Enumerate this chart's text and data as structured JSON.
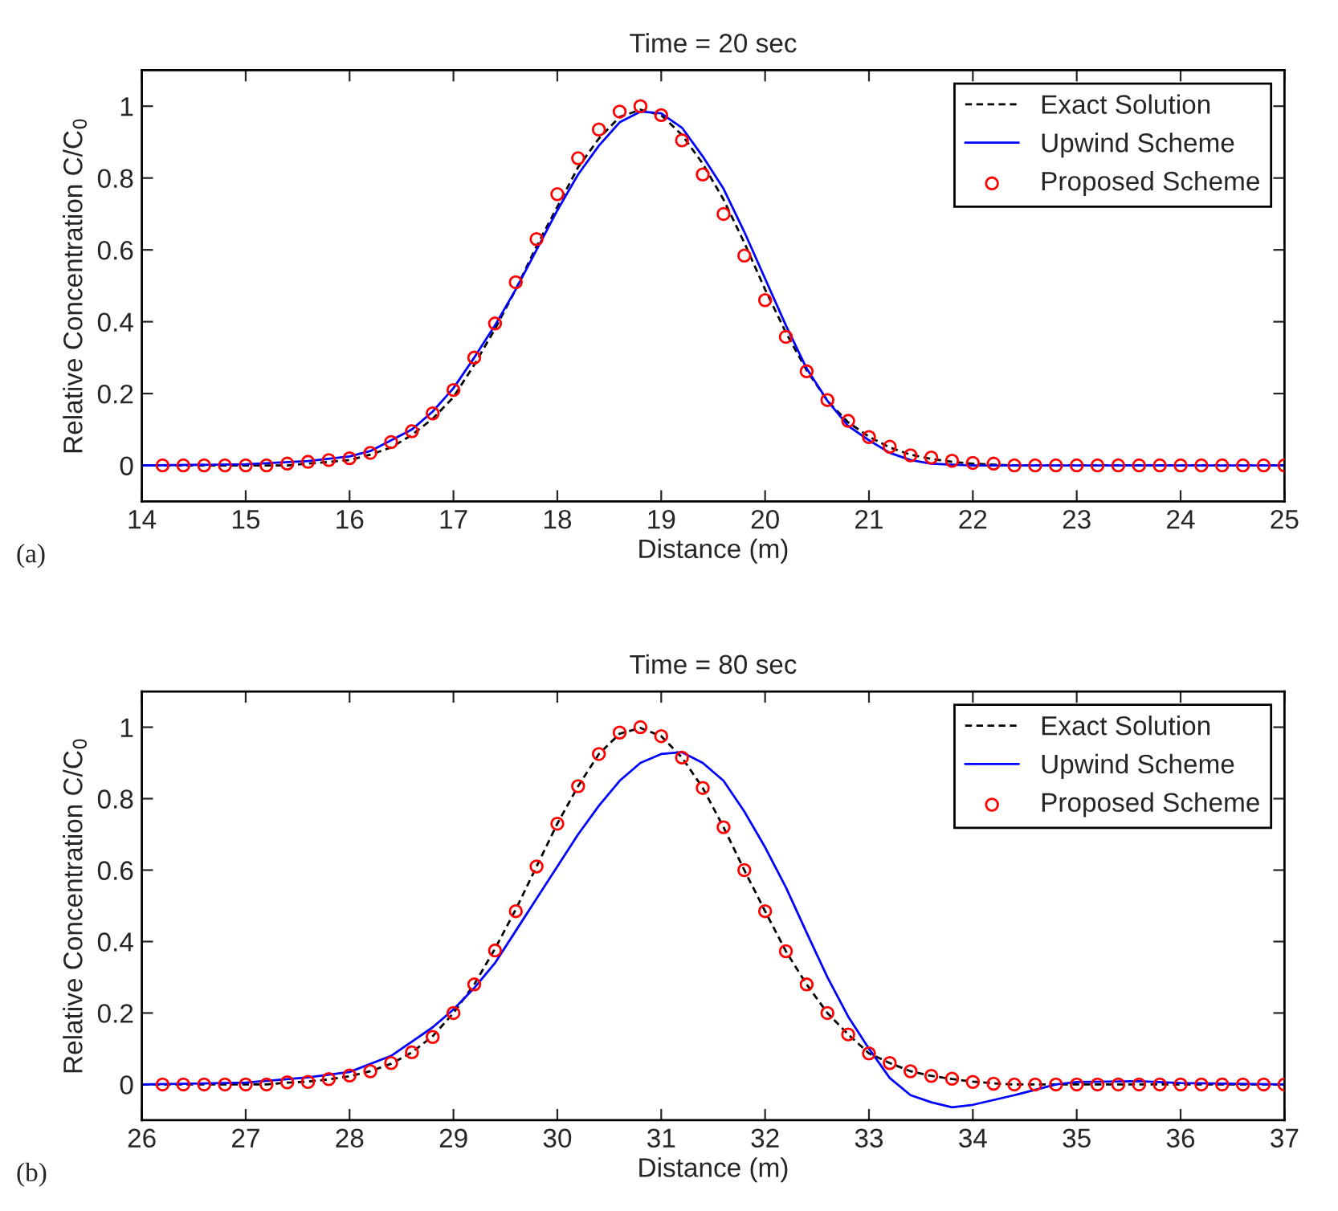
{
  "chart_data": [
    {
      "type": "line",
      "title": "Time = 20 sec",
      "xlabel": "Distance (m)",
      "ylabel": "Relative Concentration C/C$_{0}$",
      "annotations": [
        "(a)"
      ],
      "xlim": [
        14,
        25
      ],
      "xticks": [
        14,
        15,
        16,
        17,
        18,
        19,
        20,
        21,
        22,
        23,
        24,
        25
      ],
      "ylim": [
        -0.1,
        1.1
      ],
      "yticks": [
        0,
        0.2,
        0.4,
        0.6,
        0.8,
        1
      ],
      "legend": "top right",
      "grid": false,
      "series": [
        {
          "name": "Exact Solution",
          "color": "#000000",
          "line_style": "dashed",
          "marker": "none",
          "x": [
            14.0,
            14.4,
            14.8,
            15.2,
            15.4,
            15.6,
            15.8,
            16.0,
            16.2,
            16.4,
            16.6,
            16.8,
            17.0,
            17.2,
            17.4,
            17.6,
            17.8,
            18.0,
            18.2,
            18.4,
            18.6,
            18.8,
            19.0,
            19.2,
            19.4,
            19.6,
            19.8,
            20.0,
            20.2,
            20.4,
            20.6,
            20.8,
            21.0,
            21.2,
            21.4,
            21.6,
            21.8,
            22.0,
            22.2,
            22.4,
            25.0
          ],
          "values": [
            0,
            0,
            0,
            0,
            0,
            0.005,
            0.01,
            0.015,
            0.03,
            0.05,
            0.085,
            0.13,
            0.19,
            0.28,
            0.38,
            0.49,
            0.61,
            0.72,
            0.83,
            0.91,
            0.97,
            0.99,
            0.975,
            0.92,
            0.84,
            0.74,
            0.62,
            0.49,
            0.37,
            0.265,
            0.18,
            0.12,
            0.08,
            0.05,
            0.03,
            0.018,
            0.01,
            0.005,
            0.002,
            0,
            0
          ]
        },
        {
          "name": "Upwind Scheme",
          "color": "#0000ff",
          "line_style": "solid",
          "marker": "none",
          "x": [
            14.0,
            15.0,
            15.6,
            16.0,
            16.2,
            16.4,
            16.6,
            16.8,
            17.0,
            17.2,
            17.4,
            17.6,
            17.8,
            18.0,
            18.2,
            18.4,
            18.6,
            18.8,
            19.0,
            19.2,
            19.4,
            19.6,
            19.8,
            20.0,
            20.2,
            20.4,
            20.6,
            20.8,
            21.0,
            21.2,
            21.4,
            21.6,
            21.8,
            22.0,
            25.0
          ],
          "values": [
            0,
            0.003,
            0.012,
            0.025,
            0.04,
            0.07,
            0.1,
            0.15,
            0.215,
            0.3,
            0.39,
            0.49,
            0.6,
            0.71,
            0.81,
            0.89,
            0.955,
            0.985,
            0.98,
            0.94,
            0.86,
            0.77,
            0.65,
            0.52,
            0.39,
            0.27,
            0.18,
            0.11,
            0.07,
            0.035,
            0.015,
            0.005,
            0.002,
            0,
            0
          ]
        },
        {
          "name": "Proposed Scheme",
          "color": "#ff0000",
          "type": "scatter",
          "marker": "circle",
          "x": [
            14.2,
            14.4,
            14.6,
            14.8,
            15.0,
            15.2,
            15.4,
            15.6,
            15.8,
            16.0,
            16.2,
            16.4,
            16.6,
            16.8,
            17.0,
            17.2,
            17.4,
            17.6,
            17.8,
            18.0,
            18.2,
            18.4,
            18.6,
            18.8,
            19.0,
            19.2,
            19.4,
            19.6,
            19.8,
            20.0,
            20.2,
            20.4,
            20.6,
            20.8,
            21.0,
            21.2,
            21.4,
            21.6,
            21.8,
            22.0,
            22.2,
            22.4,
            22.6,
            22.8,
            23.0,
            23.2,
            23.4,
            23.6,
            23.8,
            24.0,
            24.2,
            24.4,
            24.6,
            24.8,
            25.0
          ],
          "values": [
            0,
            0,
            0,
            0,
            0,
            0,
            0.005,
            0.01,
            0.015,
            0.02,
            0.035,
            0.065,
            0.095,
            0.145,
            0.21,
            0.3,
            0.395,
            0.51,
            0.63,
            0.755,
            0.855,
            0.935,
            0.985,
            1.0,
            0.975,
            0.905,
            0.81,
            0.7,
            0.584,
            0.46,
            0.358,
            0.262,
            0.182,
            0.124,
            0.079,
            0.052,
            0.028,
            0.022,
            0.013,
            0.007,
            0.005,
            0,
            0,
            0,
            0,
            0,
            0,
            0,
            0,
            0,
            0,
            0,
            0,
            0,
            0
          ]
        }
      ]
    },
    {
      "type": "line",
      "title": "Time = 80 sec",
      "xlabel": "Distance (m)",
      "ylabel": "Relative Concentration C/C$_{0}$",
      "annotations": [
        "(b)"
      ],
      "xlim": [
        26,
        37
      ],
      "xticks": [
        26,
        27,
        28,
        29,
        30,
        31,
        32,
        33,
        34,
        35,
        36,
        37
      ],
      "ylim": [
        -0.1,
        1.1
      ],
      "yticks": [
        0,
        0.2,
        0.4,
        0.6,
        0.8,
        1
      ],
      "legend": "top right",
      "grid": false,
      "series": [
        {
          "name": "Exact Solution",
          "color": "#000000",
          "line_style": "dashed",
          "marker": "none",
          "x": [
            26.0,
            27.2,
            27.4,
            27.6,
            27.8,
            28.0,
            28.2,
            28.4,
            28.6,
            28.8,
            29.0,
            29.2,
            29.4,
            29.6,
            29.8,
            30.0,
            30.2,
            30.4,
            30.6,
            30.8,
            31.0,
            31.2,
            31.4,
            31.6,
            31.8,
            32.0,
            32.2,
            32.4,
            32.6,
            32.8,
            33.0,
            33.2,
            33.4,
            33.6,
            33.8,
            34.0,
            34.2,
            34.4,
            37.0
          ],
          "values": [
            0,
            0,
            0.005,
            0.008,
            0.014,
            0.023,
            0.037,
            0.058,
            0.09,
            0.135,
            0.2,
            0.28,
            0.38,
            0.49,
            0.61,
            0.73,
            0.835,
            0.925,
            0.982,
            0.998,
            0.975,
            0.915,
            0.83,
            0.72,
            0.6,
            0.485,
            0.373,
            0.28,
            0.2,
            0.14,
            0.087,
            0.06,
            0.037,
            0.024,
            0.015,
            0.008,
            0.003,
            0,
            0
          ]
        },
        {
          "name": "Upwind Scheme",
          "color": "#0000ff",
          "line_style": "solid",
          "marker": "none",
          "x": [
            26.0,
            27.0,
            27.6,
            28.0,
            28.4,
            28.6,
            28.8,
            29.0,
            29.2,
            29.4,
            29.6,
            29.8,
            30.0,
            30.2,
            30.4,
            30.6,
            30.8,
            31.0,
            31.2,
            31.4,
            31.6,
            31.8,
            32.0,
            32.2,
            32.4,
            32.6,
            32.8,
            33.0,
            33.2,
            33.4,
            33.6,
            33.8,
            34.0,
            34.4,
            34.8,
            35.0,
            35.6,
            36.0,
            37.0
          ],
          "values": [
            0,
            0.005,
            0.02,
            0.035,
            0.08,
            0.12,
            0.16,
            0.21,
            0.27,
            0.34,
            0.43,
            0.52,
            0.61,
            0.7,
            0.78,
            0.85,
            0.9,
            0.925,
            0.93,
            0.9,
            0.85,
            0.764,
            0.664,
            0.552,
            0.425,
            0.3,
            0.19,
            0.1,
            0.018,
            -0.03,
            -0.05,
            -0.064,
            -0.057,
            -0.03,
            0,
            0.007,
            0.009,
            0.004,
            0
          ]
        },
        {
          "name": "Proposed Scheme",
          "color": "#ff0000",
          "type": "scatter",
          "marker": "circle",
          "x": [
            26.2,
            26.4,
            26.6,
            26.8,
            27.0,
            27.2,
            27.4,
            27.6,
            27.8,
            28.0,
            28.2,
            28.4,
            28.6,
            28.8,
            29.0,
            29.2,
            29.4,
            29.6,
            29.8,
            30.0,
            30.2,
            30.4,
            30.6,
            30.8,
            31.0,
            31.2,
            31.4,
            31.6,
            31.8,
            32.0,
            32.2,
            32.4,
            32.6,
            32.8,
            33.0,
            33.2,
            33.4,
            33.6,
            33.8,
            34.0,
            34.2,
            34.4,
            34.6,
            34.8,
            35.0,
            35.2,
            35.4,
            35.6,
            35.8,
            36.0,
            36.2,
            36.4,
            36.6,
            36.8,
            37.0
          ],
          "values": [
            0,
            0,
            0,
            0,
            0,
            0,
            0.006,
            0.007,
            0.015,
            0.025,
            0.037,
            0.06,
            0.09,
            0.133,
            0.2,
            0.28,
            0.375,
            0.485,
            0.61,
            0.73,
            0.835,
            0.925,
            0.985,
            1.0,
            0.975,
            0.915,
            0.83,
            0.72,
            0.6,
            0.485,
            0.373,
            0.28,
            0.2,
            0.14,
            0.087,
            0.06,
            0.037,
            0.024,
            0.016,
            0.007,
            0.002,
            0,
            0,
            0,
            0,
            0,
            0,
            0,
            0,
            0,
            0,
            0,
            0,
            0,
            0
          ]
        }
      ]
    }
  ]
}
